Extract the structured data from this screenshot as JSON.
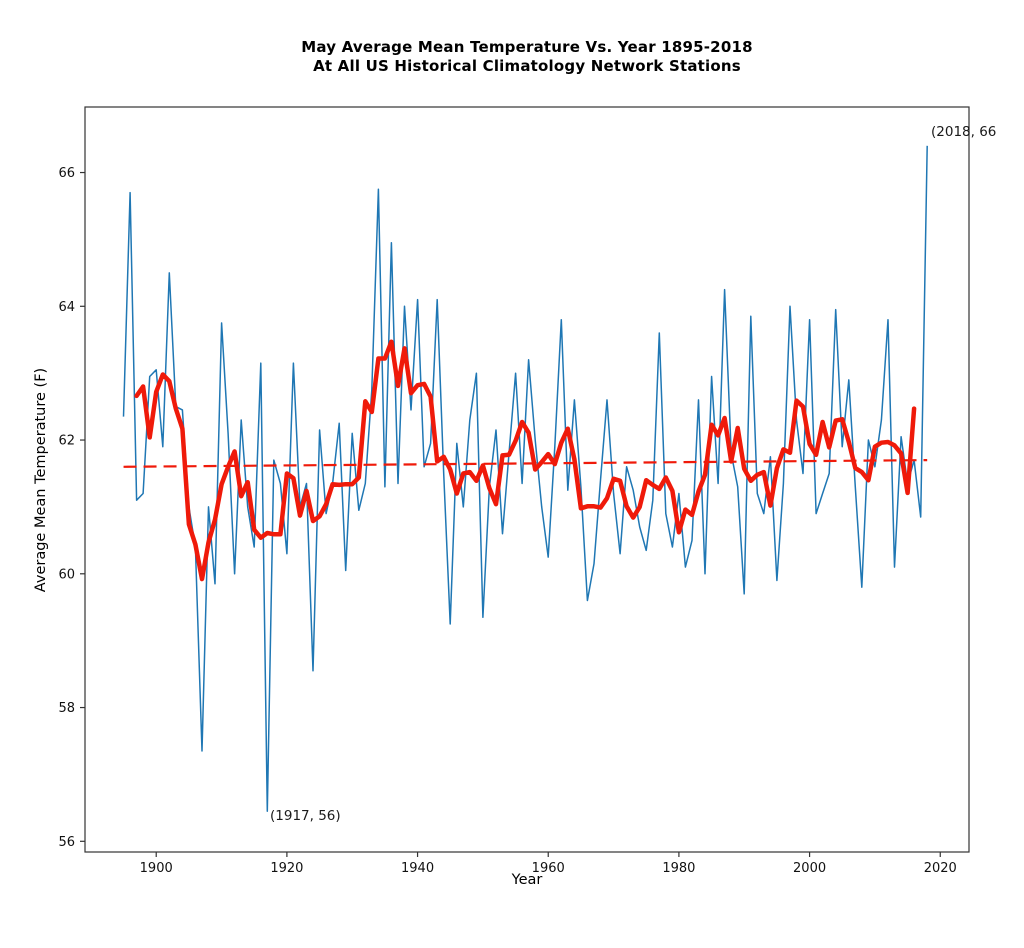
{
  "title": {
    "line1": "May Average Mean Temperature Vs. Year 1895-2018",
    "line2": "At All US Historical Climatology Network Stations"
  },
  "colors": {
    "annual_line": "#1f77b4",
    "smoothed_line": "#ef1a0a",
    "trend_line": "#ef1a0a",
    "axis": "#333333",
    "text": "#000000"
  },
  "chart_data": {
    "type": "line",
    "title": "May Average Mean Temperature Vs. Year 1895-2018 At All US Historical Climatology Network Stations",
    "xlabel": "Year",
    "ylabel": "Average Mean Temperature (F)",
    "grid": false,
    "legend": "none",
    "xlim": [
      1889.1,
      2024.4
    ],
    "ylim": [
      55.84,
      66.98
    ],
    "x_ticks": [
      1900,
      1920,
      1940,
      1960,
      1980,
      2000,
      2020
    ],
    "y_ticks": [
      56,
      58,
      60,
      62,
      64,
      66
    ],
    "x_start_year": 1895,
    "series": [
      {
        "name": "annual-may-mean-temperature",
        "style": "thin-solid",
        "values": [
          62.35,
          65.7,
          61.1,
          61.2,
          62.95,
          63.05,
          61.9,
          64.5,
          62.5,
          62.45,
          61.0,
          60.4,
          57.35,
          61.0,
          59.85,
          63.75,
          62.1,
          60.0,
          62.3,
          61.0,
          60.4,
          63.15,
          56.45,
          61.7,
          61.35,
          60.3,
          63.15,
          61.0,
          61.35,
          58.55,
          62.15,
          60.9,
          61.35,
          62.25,
          60.05,
          62.1,
          60.95,
          61.35,
          62.75,
          65.75,
          61.3,
          64.95,
          61.35,
          64.0,
          62.45,
          64.1,
          61.6,
          61.95,
          64.1,
          61.5,
          59.25,
          61.95,
          61.0,
          62.3,
          63.0,
          59.35,
          61.3,
          62.15,
          60.6,
          61.8,
          63.0,
          61.35,
          63.2,
          62.0,
          61.0,
          60.25,
          61.9,
          63.8,
          61.25,
          62.6,
          61.3,
          59.6,
          60.15,
          61.4,
          62.6,
          61.2,
          60.3,
          61.6,
          61.25,
          60.7,
          60.35,
          61.1,
          63.6,
          60.9,
          60.4,
          61.2,
          60.1,
          60.5,
          62.6,
          60.0,
          62.95,
          61.35,
          64.25,
          61.8,
          61.3,
          59.7,
          63.85,
          61.2,
          60.9,
          61.75,
          59.9,
          61.35,
          64.0,
          62.3,
          61.5,
          63.8,
          60.9,
          61.2,
          61.5,
          63.95,
          61.9,
          62.9,
          61.3,
          59.8,
          62.0,
          61.6,
          62.3,
          63.8,
          60.1,
          62.05,
          61.35,
          61.7,
          60.85,
          66.4
        ]
      },
      {
        "name": "five-year-centered-mean",
        "style": "thick-solid",
        "derived": "5-year centered moving average of annual series"
      },
      {
        "name": "linear-trend",
        "style": "dashed",
        "x": [
          1895,
          2018
        ],
        "values": [
          61.6,
          61.7
        ]
      }
    ],
    "annotations": [
      {
        "text": "(2018, 66",
        "x": 2018.6,
        "y": 66.6
      },
      {
        "text": "(1917, 56)",
        "x": 1917.4,
        "y": 56.38
      }
    ]
  }
}
